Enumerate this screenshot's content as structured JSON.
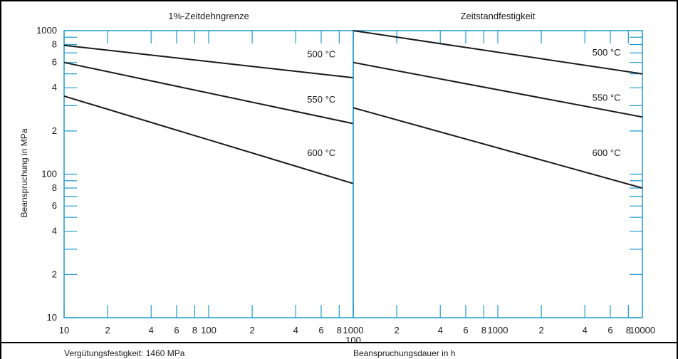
{
  "colors": {
    "axis": "#1f9bd1",
    "line": "#1a1a1a",
    "border": "#000000"
  },
  "footer": {
    "left": "Vergütungsfestigkeit: 1460 MPa",
    "right": "Beanspruchungsdauer in h"
  },
  "chart_data": [
    {
      "type": "line",
      "title": "1%-Zeitdehngrenze",
      "xlabel": "",
      "ylabel": "Beanspruchung in MPa",
      "xscale": "log",
      "yscale": "log",
      "xlim": [
        10,
        1000
      ],
      "ylim": [
        10,
        1000
      ],
      "x_tick_labels": [
        {
          "v": 10,
          "t": "10"
        },
        {
          "v": 20,
          "t": "2"
        },
        {
          "v": 40,
          "t": "4"
        },
        {
          "v": 60,
          "t": "6"
        },
        {
          "v": 80,
          "t": "8"
        },
        {
          "v": 100,
          "t": "100"
        },
        {
          "v": 200,
          "t": "2"
        },
        {
          "v": 400,
          "t": "4"
        },
        {
          "v": 600,
          "t": "6"
        },
        {
          "v": 800,
          "t": "8"
        }
      ],
      "y_tick_labels": [
        {
          "v": 10,
          "t": "10"
        },
        {
          "v": 20,
          "t": "2"
        },
        {
          "v": 40,
          "t": "4"
        },
        {
          "v": 60,
          "t": "6"
        },
        {
          "v": 80,
          "t": "8"
        },
        {
          "v": 100,
          "t": "100"
        },
        {
          "v": 200,
          "t": "2"
        },
        {
          "v": 400,
          "t": "4"
        },
        {
          "v": 600,
          "t": "6"
        },
        {
          "v": 800,
          "t": "8"
        },
        {
          "v": 1000,
          "t": "1000"
        }
      ],
      "series": [
        {
          "name": "500 °C",
          "x": [
            10,
            1000
          ],
          "y": [
            790,
            470
          ]
        },
        {
          "name": "550 °C",
          "x": [
            10,
            1000
          ],
          "y": [
            600,
            225
          ]
        },
        {
          "name": "600 °C",
          "x": [
            10,
            1000
          ],
          "y": [
            350,
            86
          ]
        }
      ],
      "annotations": [
        {
          "text": "500 °C",
          "x": 480,
          "y": 680
        },
        {
          "text": "550 °C",
          "x": 480,
          "y": 330
        },
        {
          "text": "600 °C",
          "x": 480,
          "y": 140
        }
      ]
    },
    {
      "type": "line",
      "title": "Zeitstandfestigkeit",
      "xlabel": "",
      "ylabel": "",
      "xscale": "log",
      "yscale": "log",
      "xlim": [
        100,
        10000
      ],
      "ylim": [
        10,
        1000
      ],
      "x_tick_labels": [
        {
          "v": 100,
          "t": "1000\n100"
        },
        {
          "v": 200,
          "t": "2"
        },
        {
          "v": 400,
          "t": "4"
        },
        {
          "v": 600,
          "t": "6"
        },
        {
          "v": 800,
          "t": "8"
        },
        {
          "v": 1000,
          "t": "1000"
        },
        {
          "v": 2000,
          "t": "2"
        },
        {
          "v": 4000,
          "t": "4"
        },
        {
          "v": 6000,
          "t": "6"
        },
        {
          "v": 8000,
          "t": "8"
        },
        {
          "v": 10000,
          "t": "10000"
        }
      ],
      "series": [
        {
          "name": "500 °C",
          "x": [
            100,
            10000
          ],
          "y": [
            1000,
            500
          ]
        },
        {
          "name": "550 °C",
          "x": [
            100,
            10000
          ],
          "y": [
            600,
            250
          ]
        },
        {
          "name": "600 °C",
          "x": [
            100,
            10000
          ],
          "y": [
            290,
            80
          ]
        }
      ],
      "annotations": [
        {
          "text": "500 °C",
          "x": 4500,
          "y": 700
        },
        {
          "text": "550 °C",
          "x": 4500,
          "y": 340
        },
        {
          "text": "600 °C",
          "x": 4500,
          "y": 140
        }
      ]
    }
  ]
}
